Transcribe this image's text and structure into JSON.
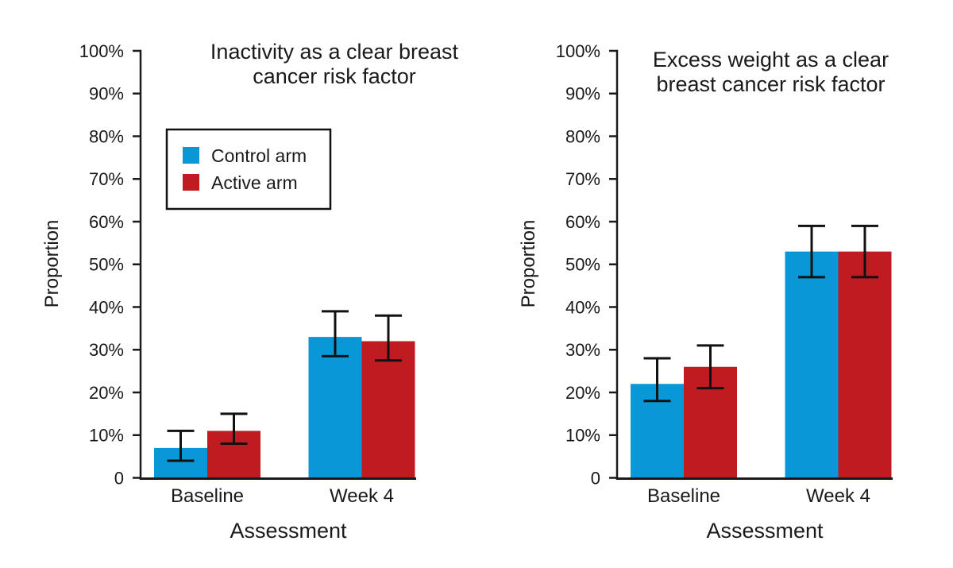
{
  "figure": {
    "background": "#ffffff"
  },
  "colors": {
    "control": "#0A97D8",
    "active": "#C11B22",
    "text": "#1A1A1A",
    "axis": "#1A1A1A",
    "error_bar": "#111111",
    "legend_border": "#111111"
  },
  "chart_data": [
    {
      "type": "bar",
      "title": "Inactivity as a clear breast cancer risk factor",
      "title_lines": [
        "Inactivity as a clear breast",
        "cancer risk factor"
      ],
      "xlabel": "Assessment",
      "ylabel": "Proportion",
      "categories": [
        "Baseline",
        "Week 4"
      ],
      "y_tick_values": [
        0,
        10,
        20,
        30,
        40,
        50,
        60,
        70,
        80,
        90,
        100
      ],
      "y_tick_labels": [
        "0",
        "10%",
        "20%",
        "30%",
        "40%",
        "50%",
        "60%",
        "70%",
        "80%",
        "90%",
        "100%"
      ],
      "ylim": [
        0,
        100
      ],
      "grid": false,
      "series": [
        {
          "name": "Control arm",
          "color_key": "control",
          "values": [
            7,
            33
          ],
          "error_low": [
            4,
            28.5
          ],
          "error_high": [
            11,
            39
          ]
        },
        {
          "name": "Active arm",
          "color_key": "active",
          "values": [
            11,
            32
          ],
          "error_low": [
            8,
            27.5
          ],
          "error_high": [
            15,
            38
          ]
        }
      ],
      "legend": {
        "visible": true,
        "position": "upper-left-inside",
        "items": [
          "Control arm",
          "Active arm"
        ]
      }
    },
    {
      "type": "bar",
      "title": "Excess weight as a clear breast cancer risk factor",
      "title_lines": [
        "Excess weight as a clear",
        "breast cancer risk factor"
      ],
      "xlabel": "Assessment",
      "ylabel": "Proportion",
      "categories": [
        "Baseline",
        "Week 4"
      ],
      "y_tick_values": [
        0,
        10,
        20,
        30,
        40,
        50,
        60,
        70,
        80,
        90,
        100
      ],
      "y_tick_labels": [
        "0",
        "10%",
        "20%",
        "30%",
        "40%",
        "50%",
        "60%",
        "70%",
        "80%",
        "90%",
        "100%"
      ],
      "ylim": [
        0,
        100
      ],
      "grid": false,
      "series": [
        {
          "name": "Control arm",
          "color_key": "control",
          "values": [
            22,
            53
          ],
          "error_low": [
            18,
            47
          ],
          "error_high": [
            28,
            59
          ]
        },
        {
          "name": "Active arm",
          "color_key": "active",
          "values": [
            26,
            53
          ],
          "error_low": [
            21,
            47
          ],
          "error_high": [
            31,
            59
          ]
        }
      ],
      "legend": {
        "visible": false,
        "position": "none",
        "items": []
      }
    }
  ]
}
